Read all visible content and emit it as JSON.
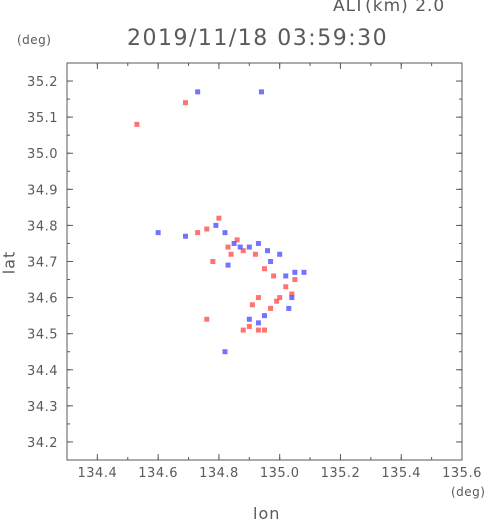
{
  "header": {
    "alt_label": "ALT(km) 2.0",
    "timestamp": "2019/11/18 03:59:30"
  },
  "axes": {
    "y_unit": "(deg)",
    "x_unit": "(deg)",
    "x_label": "lon",
    "y_label": "lat"
  },
  "colors": {
    "frame": "#5a5a5a",
    "red": "#ff5a5a",
    "blue": "#5a5aff",
    "background": "#ffffff"
  },
  "chart_data": {
    "type": "scatter",
    "xlim": [
      134.3,
      135.6
    ],
    "ylim": [
      34.15,
      35.25
    ],
    "x_ticks": [
      "134.4",
      "134.6",
      "134.8",
      "135.0",
      "135.2",
      "135.4",
      "135.6"
    ],
    "y_ticks": [
      "34.2",
      "34.3",
      "34.4",
      "34.5",
      "34.6",
      "34.7",
      "34.8",
      "34.9",
      "35.0",
      "35.1",
      "35.2"
    ],
    "grid": false,
    "series": [
      {
        "color": "red",
        "points": [
          [
            134.53,
            35.08
          ],
          [
            134.69,
            35.14
          ],
          [
            134.73,
            34.78
          ],
          [
            134.76,
            34.79
          ],
          [
            134.8,
            34.82
          ],
          [
            134.83,
            34.74
          ],
          [
            134.84,
            34.72
          ],
          [
            134.86,
            34.76
          ],
          [
            134.88,
            34.73
          ],
          [
            134.92,
            34.72
          ],
          [
            134.95,
            34.68
          ],
          [
            134.98,
            34.66
          ],
          [
            135.02,
            34.63
          ],
          [
            135.04,
            34.61
          ],
          [
            135.0,
            34.6
          ],
          [
            134.99,
            34.59
          ],
          [
            134.97,
            34.57
          ],
          [
            134.93,
            34.6
          ],
          [
            134.91,
            34.58
          ],
          [
            134.88,
            34.51
          ],
          [
            134.9,
            34.52
          ],
          [
            134.93,
            34.51
          ],
          [
            134.95,
            34.51
          ],
          [
            134.76,
            34.54
          ],
          [
            134.78,
            34.7
          ],
          [
            135.05,
            34.65
          ]
        ]
      },
      {
        "color": "blue",
        "points": [
          [
            134.73,
            35.17
          ],
          [
            134.94,
            35.17
          ],
          [
            134.6,
            34.78
          ],
          [
            134.69,
            34.77
          ],
          [
            134.79,
            34.8
          ],
          [
            134.82,
            34.78
          ],
          [
            134.85,
            34.75
          ],
          [
            134.87,
            34.74
          ],
          [
            134.9,
            34.74
          ],
          [
            134.93,
            34.75
          ],
          [
            134.96,
            34.73
          ],
          [
            135.0,
            34.72
          ],
          [
            134.97,
            34.7
          ],
          [
            135.02,
            34.66
          ],
          [
            135.05,
            34.67
          ],
          [
            135.08,
            34.67
          ],
          [
            135.04,
            34.6
          ],
          [
            134.95,
            34.55
          ],
          [
            134.93,
            34.53
          ],
          [
            134.9,
            34.54
          ],
          [
            134.82,
            34.45
          ],
          [
            134.83,
            34.69
          ],
          [
            135.03,
            34.57
          ]
        ]
      }
    ]
  }
}
